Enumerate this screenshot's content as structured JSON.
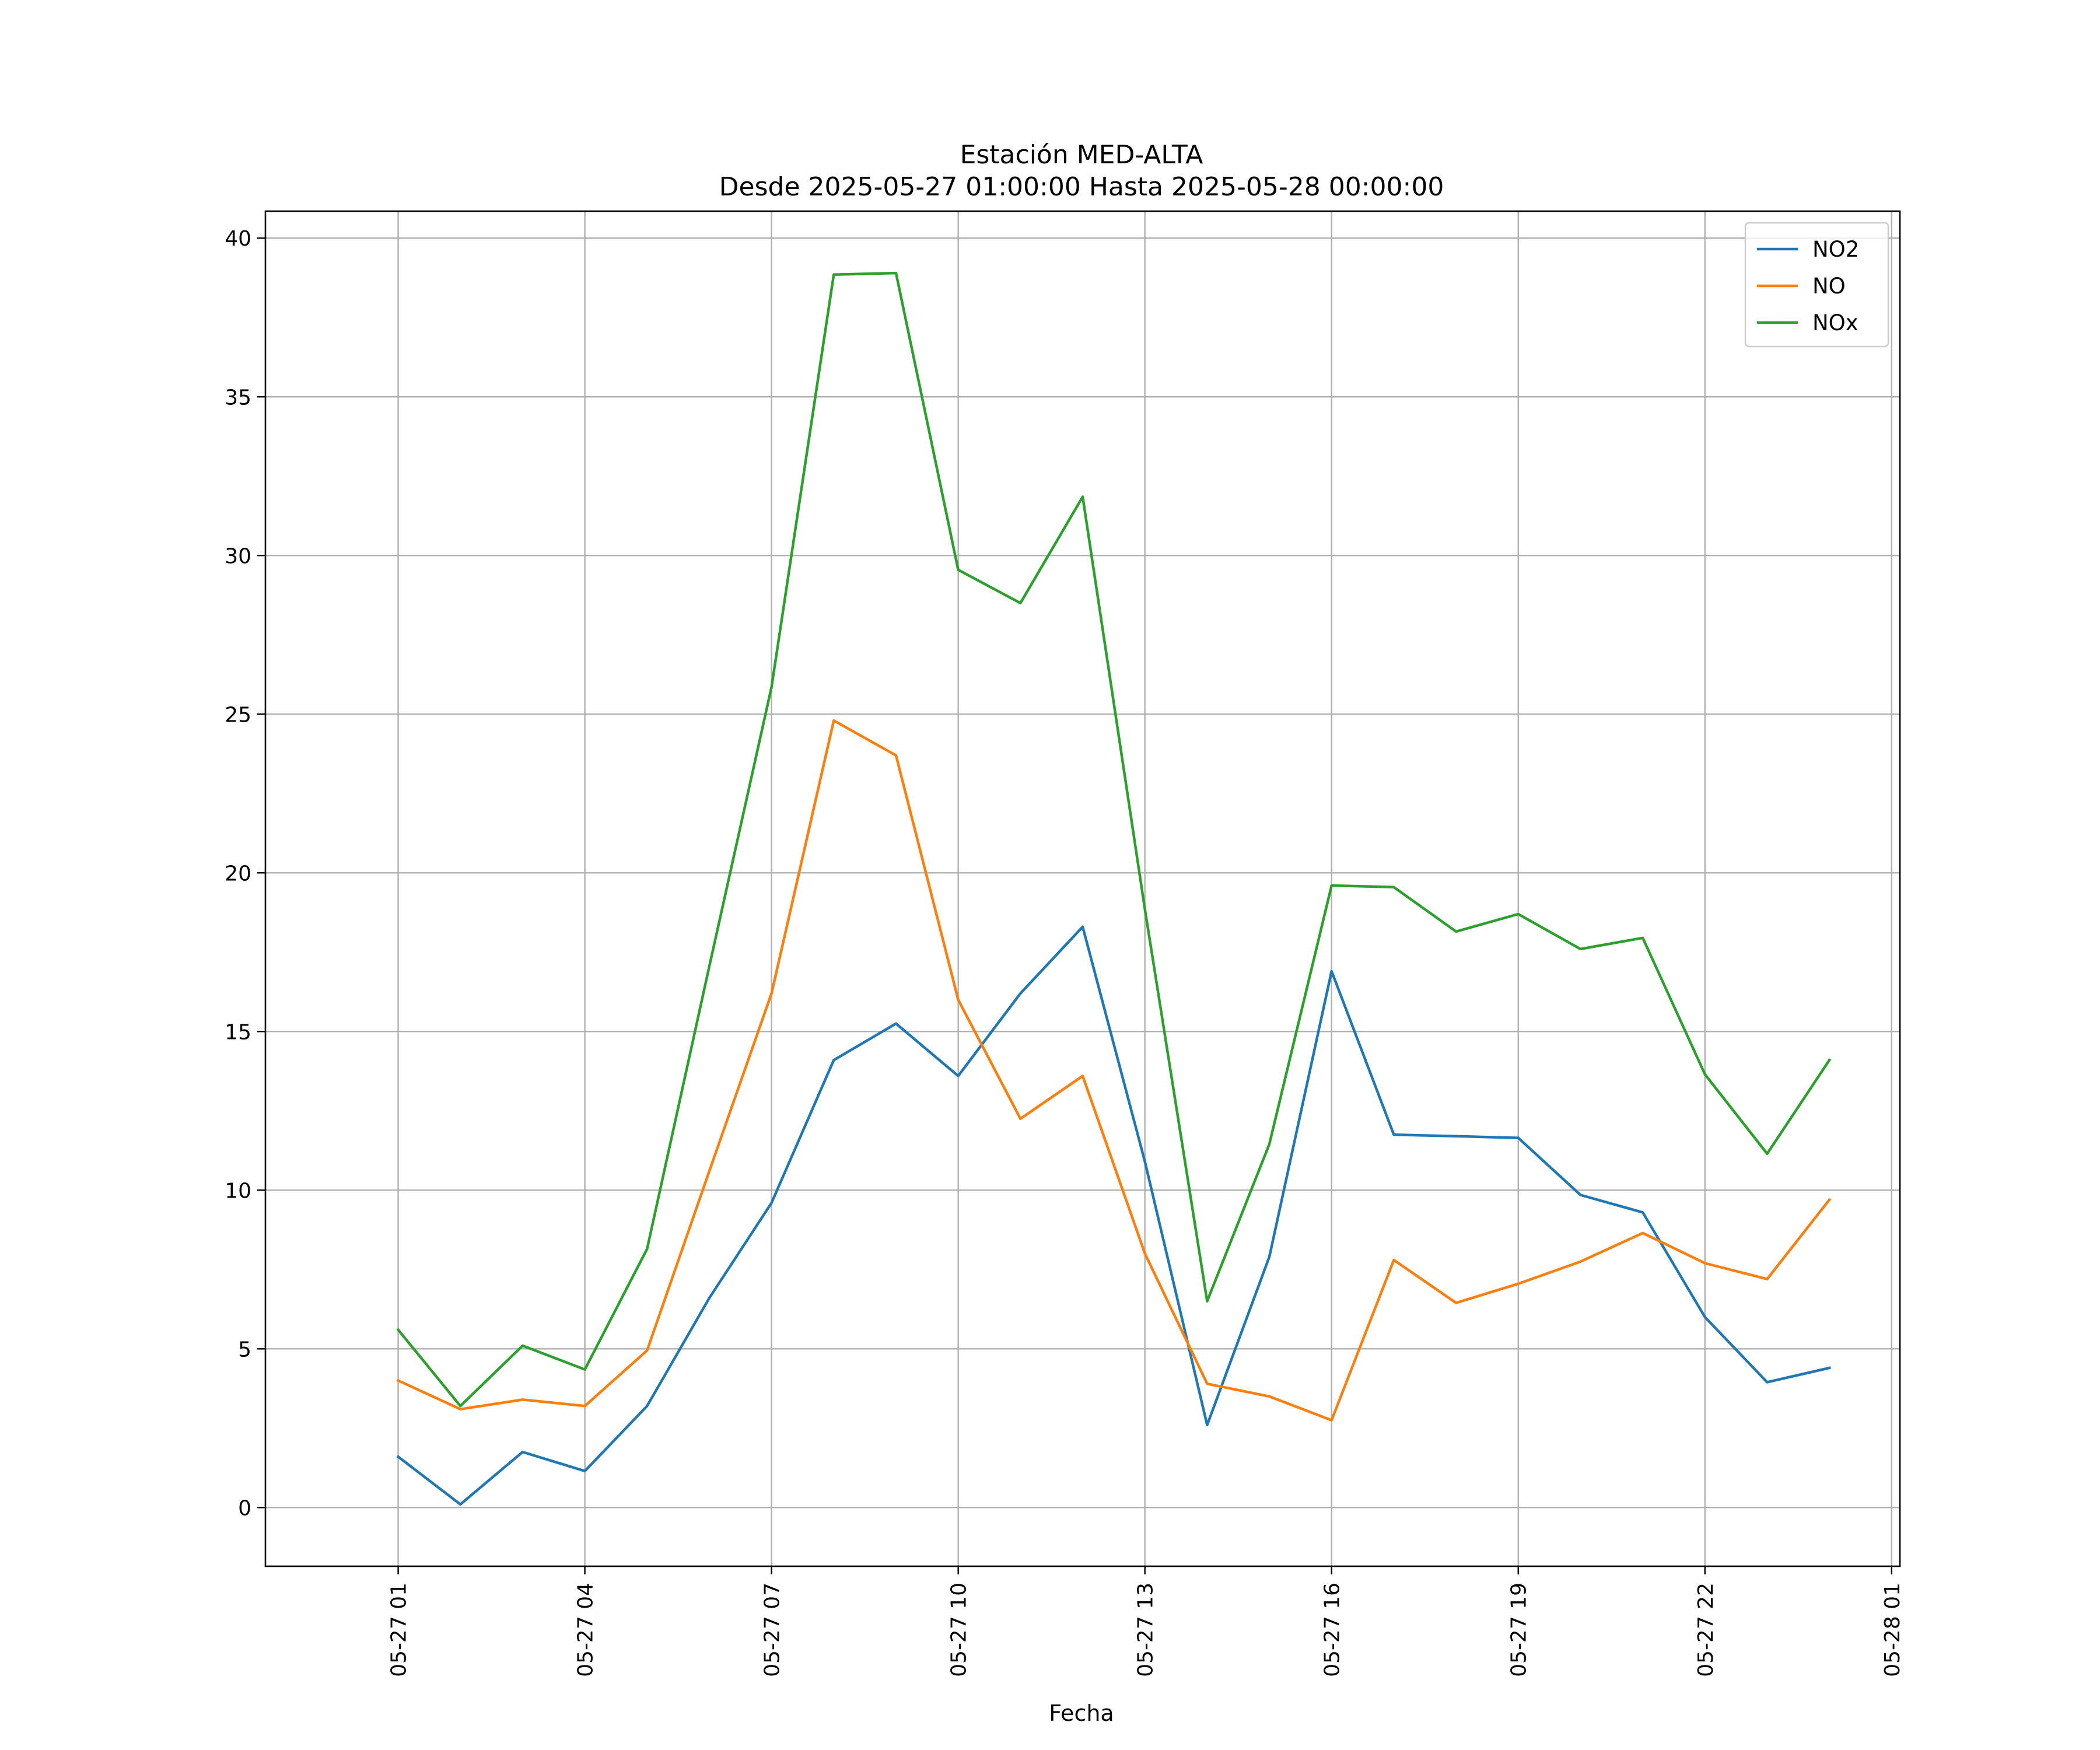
{
  "chart_data": {
    "type": "line",
    "title": "Estación MED-ALTA",
    "subtitle": "Desde 2025-05-27 01:00:00 Hasta 2025-05-28 00:00:00",
    "xlabel": "Fecha",
    "ylabel": "",
    "x": [
      "2025-05-27 01:00",
      "2025-05-27 02:00",
      "2025-05-27 03:00",
      "2025-05-27 04:00",
      "2025-05-27 05:00",
      "2025-05-27 06:00",
      "2025-05-27 07:00",
      "2025-05-27 08:00",
      "2025-05-27 09:00",
      "2025-05-27 10:00",
      "2025-05-27 11:00",
      "2025-05-27 12:00",
      "2025-05-27 13:00",
      "2025-05-27 14:00",
      "2025-05-27 15:00",
      "2025-05-27 16:00",
      "2025-05-27 17:00",
      "2025-05-27 18:00",
      "2025-05-27 19:00",
      "2025-05-27 20:00",
      "2025-05-27 21:00",
      "2025-05-27 22:00",
      "2025-05-27 23:00",
      "2025-05-28 00:00"
    ],
    "series": [
      {
        "name": "NO2",
        "color": "#1f77b4",
        "values": [
          1.6,
          0.1,
          1.75,
          1.15,
          3.2,
          6.6,
          9.6,
          14.1,
          15.25,
          13.6,
          16.2,
          18.3,
          10.9,
          2.6,
          7.9,
          16.9,
          11.75,
          11.7,
          11.65,
          9.85,
          9.3,
          6.0,
          3.95,
          4.4
        ]
      },
      {
        "name": "NO",
        "color": "#ff7f0e",
        "values": [
          4.0,
          3.1,
          3.4,
          3.2,
          4.95,
          10.6,
          16.2,
          24.8,
          23.7,
          16.0,
          12.25,
          13.6,
          8.0,
          3.9,
          3.5,
          2.75,
          7.8,
          6.45,
          7.05,
          7.75,
          8.65,
          7.7,
          7.2,
          9.7
        ]
      },
      {
        "name": "NOx",
        "color": "#2ca02c",
        "values": [
          5.6,
          3.2,
          5.1,
          4.35,
          8.15,
          17.05,
          25.85,
          38.85,
          38.9,
          29.55,
          28.5,
          31.85,
          18.85,
          6.5,
          11.45,
          19.6,
          19.55,
          18.15,
          18.7,
          17.6,
          17.95,
          13.65,
          11.15,
          14.1
        ]
      }
    ],
    "xlim": [
      "2025-05-26 22:52",
      "2025-05-28 01:08"
    ],
    "ylim": [
      -1.85,
      40.85
    ],
    "xticks": [
      {
        "value": "2025-05-27 01:00",
        "label": "05-27 01"
      },
      {
        "value": "2025-05-27 04:00",
        "label": "05-27 04"
      },
      {
        "value": "2025-05-27 07:00",
        "label": "05-27 07"
      },
      {
        "value": "2025-05-27 10:00",
        "label": "05-27 10"
      },
      {
        "value": "2025-05-27 13:00",
        "label": "05-27 13"
      },
      {
        "value": "2025-05-27 16:00",
        "label": "05-27 16"
      },
      {
        "value": "2025-05-27 19:00",
        "label": "05-27 19"
      },
      {
        "value": "2025-05-27 22:00",
        "label": "05-27 22"
      },
      {
        "value": "2025-05-28 01:00",
        "label": "05-28 01"
      }
    ],
    "yticks": [
      0,
      5,
      10,
      15,
      20,
      25,
      30,
      35,
      40
    ],
    "grid": true,
    "legend": "top-right"
  }
}
